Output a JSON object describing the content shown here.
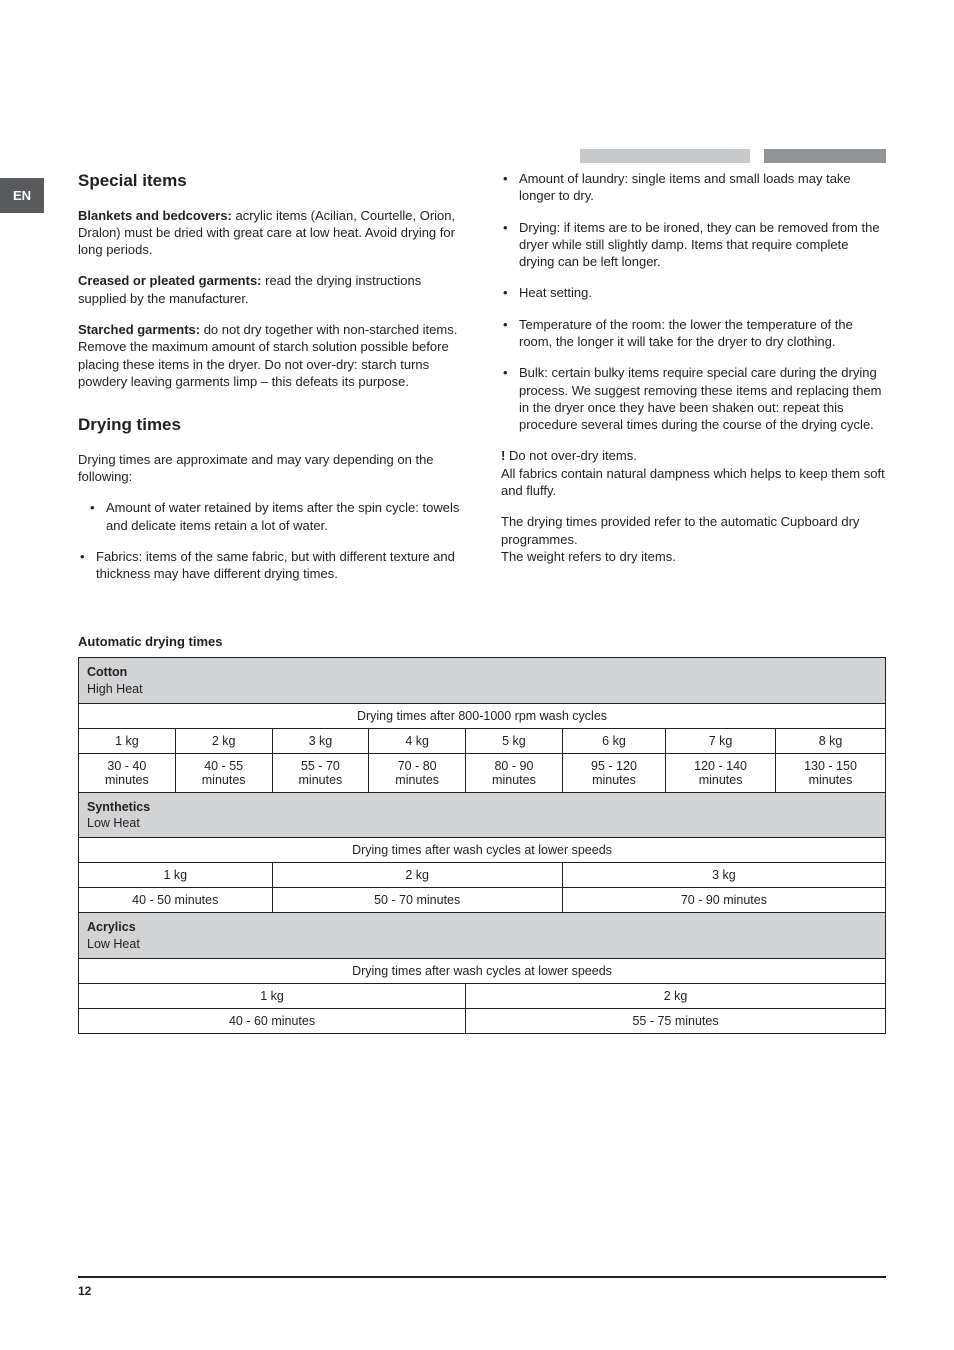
{
  "lang_tab": "EN",
  "left": {
    "h_special": "Special items",
    "p_blankets_lead": "Blankets and bedcovers:",
    "p_blankets_body": " acrylic items (Acilian, Courtelle, Orion, Dralon) must be dried with great care at low heat. Avoid drying for long periods.",
    "p_creased_lead": "Creased or pleated garments:",
    "p_creased_body": " read the drying instructions supplied by the manufacturer.",
    "p_starched_lead": "Starched garments:",
    "p_starched_body": " do not dry together with non-starched items. Remove the maximum amount of starch solution possible before placing these items in the dryer. Do not over-dry: starch turns powdery leaving garments limp – this defeats its purpose.",
    "h_drying": "Drying times",
    "p_drying_intro": "Drying times are approximate and may vary depending on the following:",
    "b_water": "Amount of water retained by items after the spin cycle: towels and delicate items retain a lot of water.",
    "b_fabrics": "Fabrics: items of the same fabric, but with different texture and thickness may have different drying times."
  },
  "right": {
    "b_amount": "Amount of laundry: single items and small loads may take longer to dry.",
    "b_drying": "Drying: if items are to be ironed, they can be removed from the dryer while still slightly damp. Items that require complete drying can be left longer.",
    "b_heat": "Heat setting.",
    "b_temp": "Temperature of the room: the lower the temperature of the room, the longer it will take for the dryer to dry clothing.",
    "b_bulk": "Bulk: certain bulky items require special care during the drying process. We suggest removing these items and replacing them in the dryer once they have been shaken out: repeat this procedure several times during the course of the drying cycle.",
    "warn_excl": "!",
    "warn_text": " Do not over-dry items.",
    "warn_body": "All fabrics contain natural dampness which helps to keep them soft and fluffy.",
    "p_refer": "The drying times provided refer to the automatic Cupboard dry programmes.",
    "p_weight": "The weight refers to dry items."
  },
  "table": {
    "title": "Automatic drying times",
    "cotton": {
      "name": "Cotton",
      "heat": "High Heat",
      "subhead": "Drying times after 800-1000 rpm wash cycles",
      "weights": [
        "1 kg",
        "2 kg",
        "3 kg",
        "4 kg",
        "5 kg",
        "6 kg",
        "7 kg",
        "8 kg"
      ],
      "times": [
        "30 - 40 minutes",
        "40 - 55 minutes",
        "55 - 70 minutes",
        "70 - 80 minutes",
        "80 - 90 minutes",
        "95 - 120 minutes",
        "120 - 140 minutes",
        "130 - 150 minutes"
      ]
    },
    "synth": {
      "name": "Synthetics",
      "heat": "Low Heat",
      "subhead": "Drying times after wash cycles at lower speeds",
      "weights": [
        "1 kg",
        "2 kg",
        "3 kg"
      ],
      "times": [
        "40 - 50 minutes",
        "50 - 70 minutes",
        "70 - 90 minutes"
      ]
    },
    "acryl": {
      "name": "Acrylics",
      "heat": "Low Heat",
      "subhead": "Drying times after wash cycles at lower speeds",
      "weights": [
        "1 kg",
        "2 kg"
      ],
      "times": [
        "40 - 60 minutes",
        "55 - 75 minutes"
      ]
    }
  },
  "page_number": "12"
}
